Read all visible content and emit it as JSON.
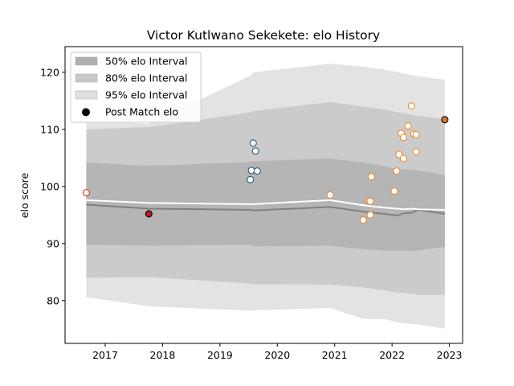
{
  "chart_data": {
    "type": "scatter",
    "title": "Victor Kutlwano Sekekete: elo History",
    "xlabel": "",
    "ylabel": "elo score",
    "xlim": [
      2016.3,
      2023.23
    ],
    "ylim": [
      72.5,
      124.5
    ],
    "x_ticks": [
      2017,
      2018,
      2019,
      2020,
      2021,
      2022,
      2023
    ],
    "y_ticks": [
      80,
      90,
      100,
      110,
      120
    ],
    "grid": false,
    "legend_position": "top-left",
    "legend": [
      {
        "label": "50% elo Interval",
        "kind": "band",
        "color": "#b0b0b0"
      },
      {
        "label": "80% elo Interval",
        "kind": "band",
        "color": "#c8c8c8"
      },
      {
        "label": "95% elo Interval",
        "kind": "band",
        "color": "#e0e0e0"
      },
      {
        "label": "Post Match elo",
        "kind": "marker",
        "color": "#000000"
      }
    ],
    "bands": {
      "x": [
        2016.67,
        2017.76,
        2019.55,
        2019.58,
        2020.92,
        2021.5,
        2021.85,
        2022.1,
        2022.2,
        2022.35,
        2022.45,
        2022.92
      ],
      "p95_upper": [
        111.5,
        111.0,
        119.5,
        120.0,
        121.5,
        121.0,
        120.5,
        120.0,
        119.8,
        119.5,
        119.3,
        118.7
      ],
      "p80_upper": [
        110.0,
        110.4,
        113.0,
        113.2,
        114.8,
        114.0,
        113.5,
        113.0,
        112.8,
        112.6,
        112.4,
        111.8
      ],
      "p50_upper": [
        104.2,
        103.6,
        104.3,
        104.4,
        104.9,
        104.2,
        103.6,
        103.0,
        103.0,
        103.0,
        102.8,
        102.0
      ],
      "p50_lower": [
        89.8,
        89.6,
        89.8,
        89.5,
        89.6,
        89.0,
        88.8,
        88.8,
        88.8,
        88.7,
        88.8,
        89.4
      ],
      "p80_lower": [
        84.0,
        84.1,
        83.0,
        82.9,
        82.8,
        82.3,
        81.8,
        81.4,
        81.3,
        81.2,
        81.0,
        81.0
      ],
      "p95_lower": [
        80.6,
        79.0,
        78.2,
        78.3,
        78.7,
        76.8,
        76.8,
        76.2,
        76.0,
        75.9,
        75.8,
        75.1
      ],
      "color_p95": "#e3e3e3",
      "color_p80": "#cbcbcb",
      "color_p50": "#b5b5b5"
    },
    "median_line": {
      "x": [
        2016.67,
        2017.76,
        2019.55,
        2019.58,
        2020.92,
        2021.5,
        2021.85,
        2022.1,
        2022.2,
        2022.35,
        2022.45,
        2022.92
      ],
      "values": [
        96.8,
        96.1,
        95.9,
        95.8,
        96.4,
        95.6,
        95.2,
        94.9,
        95.3,
        95.4,
        95.9,
        95.2
      ],
      "color": "#808080"
    },
    "mean_line": {
      "x": [
        2016.67,
        2017.76,
        2019.55,
        2019.58,
        2020.92,
        2021.5,
        2021.85,
        2022.1,
        2022.2,
        2022.35,
        2022.45,
        2022.92
      ],
      "values": [
        97.6,
        97.1,
        96.9,
        96.9,
        97.6,
        96.7,
        96.3,
        96.1,
        96.0,
        96.1,
        96.0,
        95.9
      ],
      "color": "#ffffff"
    },
    "series": [
      {
        "color": "#e8271b",
        "fill": "#ffffff",
        "points": [
          [
            2016.67,
            98.9
          ]
        ]
      },
      {
        "color": "#1f5a75",
        "fill": "#ffffff",
        "points": [
          [
            2019.58,
            107.6
          ],
          [
            2019.62,
            106.2
          ],
          [
            2019.55,
            102.8
          ],
          [
            2019.65,
            102.7
          ],
          [
            2019.53,
            101.2
          ]
        ]
      },
      {
        "color": "#f08a2b",
        "fill": "#ffffff",
        "points": [
          [
            2020.92,
            98.5
          ],
          [
            2021.5,
            94.1
          ],
          [
            2021.6,
            97.5
          ],
          [
            2021.62,
            97.4
          ],
          [
            2021.62,
            95.0
          ],
          [
            2021.64,
            101.7
          ],
          [
            2022.04,
            99.2
          ],
          [
            2022.08,
            102.7
          ],
          [
            2022.12,
            105.6
          ],
          [
            2022.16,
            109.3
          ],
          [
            2022.2,
            108.6
          ],
          [
            2022.2,
            104.9
          ],
          [
            2022.28,
            110.6
          ],
          [
            2022.34,
            114.1
          ],
          [
            2022.38,
            109.2
          ],
          [
            2022.42,
            109.1
          ],
          [
            2022.42,
            106.1
          ]
        ]
      },
      {
        "color": "#000000",
        "fill": "#c0131f",
        "points": [
          [
            2017.76,
            95.2
          ]
        ]
      },
      {
        "color": "#000000",
        "fill": "#e0732a",
        "points": [
          [
            2022.92,
            111.7
          ]
        ]
      }
    ]
  }
}
